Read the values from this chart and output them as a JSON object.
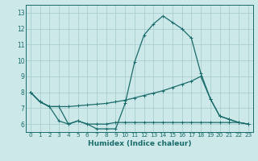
{
  "title": "",
  "xlabel": "Humidex (Indice chaleur)",
  "background_color": "#cce8e8",
  "line_color": "#1a6b6b",
  "grid_color": "#aacece",
  "xlim": [
    -0.5,
    23.5
  ],
  "ylim": [
    5.5,
    13.5
  ],
  "xticks": [
    0,
    1,
    2,
    3,
    4,
    5,
    6,
    7,
    8,
    9,
    10,
    11,
    12,
    13,
    14,
    15,
    16,
    17,
    18,
    19,
    20,
    21,
    22,
    23
  ],
  "yticks": [
    6,
    7,
    8,
    9,
    10,
    11,
    12,
    13
  ],
  "line1_x": [
    0,
    1,
    2,
    3,
    4,
    5,
    6,
    7,
    8,
    9,
    10,
    11,
    12,
    13,
    14,
    15,
    16,
    17,
    18,
    19,
    20,
    21,
    22,
    23
  ],
  "line1_y": [
    8.0,
    7.4,
    7.1,
    7.1,
    6.0,
    6.2,
    6.0,
    5.7,
    5.7,
    5.7,
    7.3,
    9.9,
    11.6,
    12.3,
    12.8,
    12.4,
    12.0,
    11.4,
    9.2,
    7.6,
    6.5,
    6.3,
    6.1,
    6.0
  ],
  "line2_x": [
    0,
    1,
    2,
    3,
    4,
    5,
    6,
    7,
    8,
    9,
    10,
    11,
    12,
    13,
    14,
    15,
    16,
    17,
    18,
    19,
    20,
    21,
    22,
    23
  ],
  "line2_y": [
    8.0,
    7.4,
    7.1,
    7.1,
    7.1,
    7.15,
    7.2,
    7.25,
    7.3,
    7.4,
    7.5,
    7.65,
    7.8,
    7.95,
    8.1,
    8.3,
    8.5,
    8.7,
    9.0,
    7.6,
    6.5,
    6.3,
    6.1,
    6.0
  ],
  "line3_x": [
    0,
    1,
    2,
    3,
    4,
    5,
    6,
    7,
    8,
    9,
    10,
    11,
    12,
    13,
    14,
    15,
    16,
    17,
    18,
    19,
    20,
    21,
    22,
    23
  ],
  "line3_y": [
    8.0,
    7.4,
    7.1,
    6.2,
    6.0,
    6.2,
    6.0,
    6.0,
    6.0,
    6.1,
    6.1,
    6.1,
    6.1,
    6.1,
    6.1,
    6.1,
    6.1,
    6.1,
    6.1,
    6.1,
    6.1,
    6.1,
    6.1,
    6.0
  ]
}
